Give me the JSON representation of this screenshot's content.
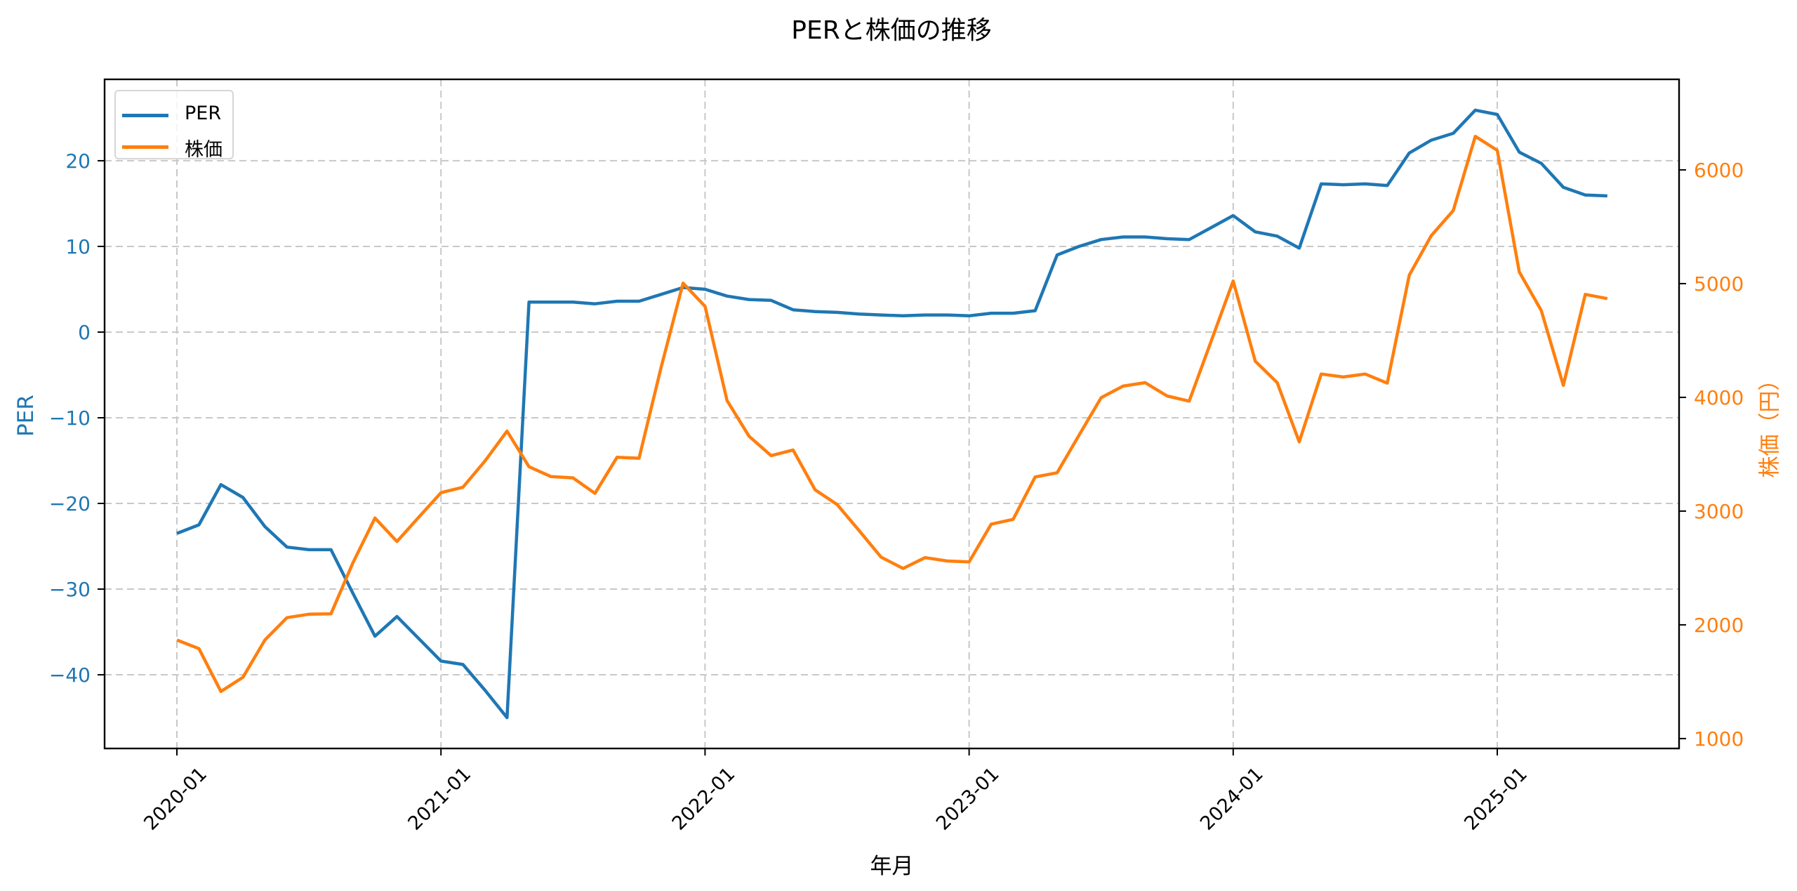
{
  "chart_data": {
    "type": "line",
    "title": "PERと株価の推移",
    "xlabel": "年月",
    "ylabel": "PER",
    "ylabel_right": "株価（円）",
    "x": [
      "2020-01",
      "2020-02",
      "2020-03",
      "2020-04",
      "2020-05",
      "2020-06",
      "2020-07",
      "2020-08",
      "2020-09",
      "2020-10",
      "2020-11",
      "2020-12",
      "2021-01",
      "2021-02",
      "2021-03",
      "2021-04",
      "2021-05",
      "2021-06",
      "2021-07",
      "2021-08",
      "2021-09",
      "2021-10",
      "2021-11",
      "2021-12",
      "2022-01",
      "2022-02",
      "2022-03",
      "2022-04",
      "2022-05",
      "2022-06",
      "2022-07",
      "2022-08",
      "2022-09",
      "2022-10",
      "2022-11",
      "2022-12",
      "2023-01",
      "2023-02",
      "2023-03",
      "2023-04",
      "2023-05",
      "2023-06",
      "2023-07",
      "2023-08",
      "2023-09",
      "2023-10",
      "2023-11",
      "2023-12",
      "2024-01",
      "2024-02",
      "2024-03",
      "2024-04",
      "2024-05",
      "2024-06",
      "2024-07",
      "2024-08",
      "2024-09",
      "2024-10",
      "2024-11",
      "2024-12",
      "2025-01",
      "2025-02",
      "2025-03",
      "2025-04",
      "2025-05",
      "2025-06"
    ],
    "series": [
      {
        "name": "PER",
        "axis": "left",
        "color": "#1f77b4",
        "values": [
          -23.5,
          -22.5,
          -17.8,
          -19.3,
          -22.7,
          -25.1,
          -25.4,
          -25.4,
          -30.5,
          -35.5,
          -33.2,
          -35.8,
          -38.4,
          -38.8,
          -41.8,
          -45.0,
          3.5,
          3.5,
          3.5,
          3.3,
          3.6,
          3.6,
          4.4,
          5.2,
          5.0,
          4.2,
          3.8,
          3.7,
          2.6,
          2.4,
          2.3,
          2.1,
          2.0,
          1.9,
          2.0,
          2.0,
          1.9,
          2.2,
          2.2,
          2.5,
          9.0,
          10.0,
          10.8,
          11.1,
          11.1,
          10.9,
          10.8,
          12.2,
          13.6,
          11.7,
          11.2,
          9.8,
          17.3,
          17.2,
          17.3,
          17.1,
          20.9,
          22.4,
          23.2,
          25.9,
          25.4,
          21.0,
          19.7,
          16.9,
          16.0,
          15.9
        ]
      },
      {
        "name": "株価",
        "axis": "right",
        "color": "#ff7f0e",
        "values": [
          1867,
          1791,
          1414,
          1539,
          1867,
          2063,
          2093,
          2097,
          2546,
          2939,
          2733,
          2948,
          3162,
          3210,
          3440,
          3703,
          3390,
          3303,
          3292,
          3156,
          3473,
          3465,
          4261,
          5004,
          4800,
          3971,
          3658,
          3488,
          3537,
          3187,
          3058,
          2829,
          2595,
          2496,
          2591,
          2561,
          2553,
          2885,
          2927,
          3300,
          3337,
          3669,
          3997,
          4099,
          4129,
          4012,
          3967,
          4495,
          5023,
          4318,
          4129,
          3609,
          4205,
          4179,
          4205,
          4125,
          5074,
          5422,
          5642,
          6295,
          6172,
          5102,
          4763,
          4106,
          4905,
          4868
        ]
      }
    ],
    "xticks": [
      "2020-01",
      "2021-01",
      "2022-01",
      "2023-01",
      "2024-01",
      "2025-01"
    ],
    "yticks_left": [
      -40,
      -30,
      -20,
      -10,
      0,
      10,
      20
    ],
    "yticks_right": [
      1000,
      2000,
      3000,
      4000,
      5000,
      6000
    ],
    "ylim_left": [
      -48.6,
      29.5
    ],
    "ylim_right": [
      913,
      6796
    ],
    "grid": true,
    "legend_position": "upper left",
    "colors": {
      "left_axis": "#1f77b4",
      "right_axis": "#ff7f0e",
      "grid": "#c8c8c8"
    }
  },
  "legend": {
    "items": [
      {
        "label": "PER",
        "color": "#1f77b4"
      },
      {
        "label": "株価",
        "color": "#ff7f0e"
      }
    ]
  }
}
